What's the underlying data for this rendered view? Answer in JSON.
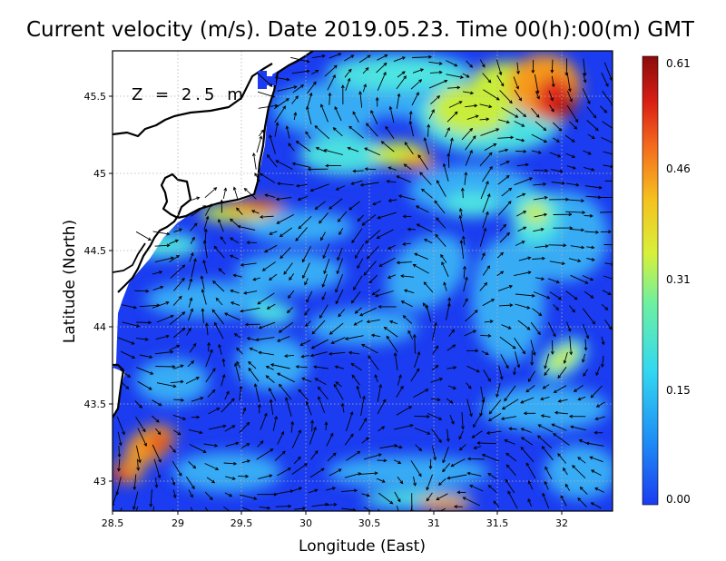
{
  "title": "Current velocity (m/s). Date 2019.05.23. Time 00(h):00(m) GMT",
  "depth_label": "Z = 2.5 m",
  "x_axis": {
    "label": "Longitude (East)",
    "ticks": [
      "28.5",
      "29",
      "29.5",
      "30",
      "30.5",
      "31",
      "31.5",
      "32"
    ]
  },
  "y_axis": {
    "label": "Latitude (North)",
    "ticks": [
      "43",
      "43.5",
      "44",
      "44.5",
      "45",
      "45.5"
    ]
  },
  "colorbar": {
    "ticks": [
      "0.00",
      "0.15",
      "0.31",
      "0.46",
      "0.61"
    ],
    "colors": [
      "#1b3cf0",
      "#1e8cf5",
      "#33e0f0",
      "#7bf08a",
      "#f2ec2a",
      "#f59a1e",
      "#e02a1a",
      "#8a0c0c"
    ]
  },
  "colors": {
    "land": "#ffffff",
    "coastline": "#000000",
    "sea_low": "#1b3cf0",
    "grid": "#b4b4b4"
  }
}
